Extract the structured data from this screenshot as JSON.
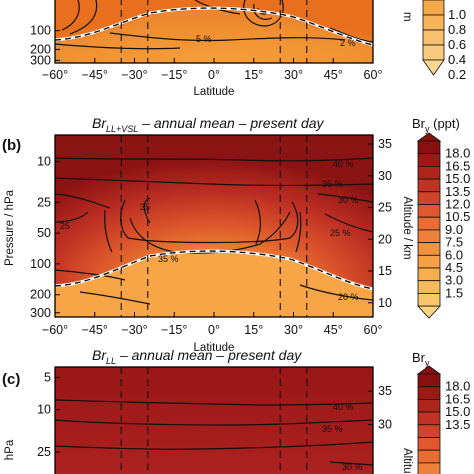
{
  "chart_data": [
    {
      "type": "heatmap",
      "panel_label": "",
      "title_base": "",
      "title_sup": "",
      "title_rest": "",
      "xlabel": "Latitude",
      "ylabel": "",
      "y2label": "m",
      "x_ticks": [
        "−60°",
        "−45°",
        "−30°",
        "−15°",
        "0°",
        "15°",
        "30°",
        "45°",
        "60°"
      ],
      "x_tick_values": [
        -60,
        -45,
        -30,
        -15,
        0,
        15,
        30,
        45,
        60
      ],
      "y_ticks": [
        "100",
        "200",
        "300"
      ],
      "y_tick_values": [
        100,
        200,
        300
      ],
      "y2_ticks": [],
      "colorbar_label_base": "",
      "colorbar_label_rest": "",
      "colorbar_ticks": [
        "1.0",
        "0.8",
        "0.6",
        "0.4",
        "0.2"
      ],
      "contour_labels": [
        "5 %",
        "2 %"
      ],
      "dashed_latitudes": [
        -35,
        -25,
        25,
        35
      ],
      "tropopause_pressure_hPa": {
        "lat": [
          -60,
          -45,
          -30,
          -25,
          -15,
          0,
          15,
          25,
          30,
          45,
          60
        ],
        "p": [
          190,
          180,
          140,
          110,
          95,
          88,
          95,
          110,
          140,
          190,
          200
        ]
      }
    },
    {
      "type": "heatmap",
      "panel_label": "(b)",
      "title_base": "Br",
      "title_sup": "LL+VSL",
      "title_rest": " – annual mean – present day",
      "xlabel": "Latitude",
      "ylabel": "Pressure / hPa",
      "y2label": "Altitude / km",
      "x_ticks": [
        "−60°",
        "−45°",
        "−30°",
        "−15°",
        "0°",
        "15°",
        "30°",
        "45°",
        "60°"
      ],
      "x_tick_values": [
        -60,
        -45,
        -30,
        -15,
        0,
        15,
        30,
        45,
        60
      ],
      "y_ticks": [
        "10",
        "25",
        "50",
        "100",
        "200",
        "300"
      ],
      "y_tick_values": [
        10,
        25,
        50,
        100,
        200,
        300
      ],
      "y2_ticks": [
        "35",
        "30",
        "25",
        "20",
        "15",
        "10"
      ],
      "y2_tick_values_km": [
        35,
        30,
        25,
        20,
        15,
        10
      ],
      "colorbar_label_base": "Br",
      "colorbar_label_rest": " (ppt)",
      "colorbar_ticks": [
        "18.0",
        "16.5",
        "15.0",
        "13.5",
        "12.0",
        "10.5",
        "9.0",
        "7.5",
        "6.0",
        "4.5",
        "3.0",
        "1.5"
      ],
      "colorbar_values": [
        18.0,
        16.5,
        15.0,
        13.5,
        12.0,
        10.5,
        9.0,
        7.5,
        6.0,
        4.5,
        3.0,
        1.5
      ],
      "contour_labels": [
        "40 %",
        "35 %",
        "30 %",
        "25 %",
        "35",
        "25",
        "20 %",
        "35 %"
      ],
      "dashed_latitudes": [
        -35,
        -25,
        25,
        35
      ],
      "tropopause_pressure_hPa": {
        "lat": [
          -60,
          -45,
          -30,
          -25,
          -15,
          0,
          15,
          25,
          30,
          45,
          60
        ],
        "p": [
          190,
          180,
          140,
          110,
          95,
          88,
          95,
          110,
          140,
          190,
          200
        ]
      }
    },
    {
      "type": "heatmap",
      "panel_label": "(c)",
      "title_base": "Br",
      "title_sup": "LL",
      "title_rest": " – annual mean – present day",
      "xlabel": "",
      "ylabel": "hPa",
      "y2label": "Altitu",
      "x_ticks": [],
      "y_ticks": [
        "5",
        "10",
        "25"
      ],
      "y_tick_values": [
        5,
        10,
        25
      ],
      "y2_ticks": [
        "35",
        "30"
      ],
      "colorbar_label_base": "Br",
      "colorbar_label_rest": "",
      "colorbar_ticks": [
        "18.0",
        "16.5",
        "15.0",
        "13.5"
      ],
      "contour_labels": [
        "40 %",
        "35 %",
        "30 %"
      ],
      "dashed_latitudes": [
        -35,
        -25,
        25,
        35
      ]
    }
  ]
}
